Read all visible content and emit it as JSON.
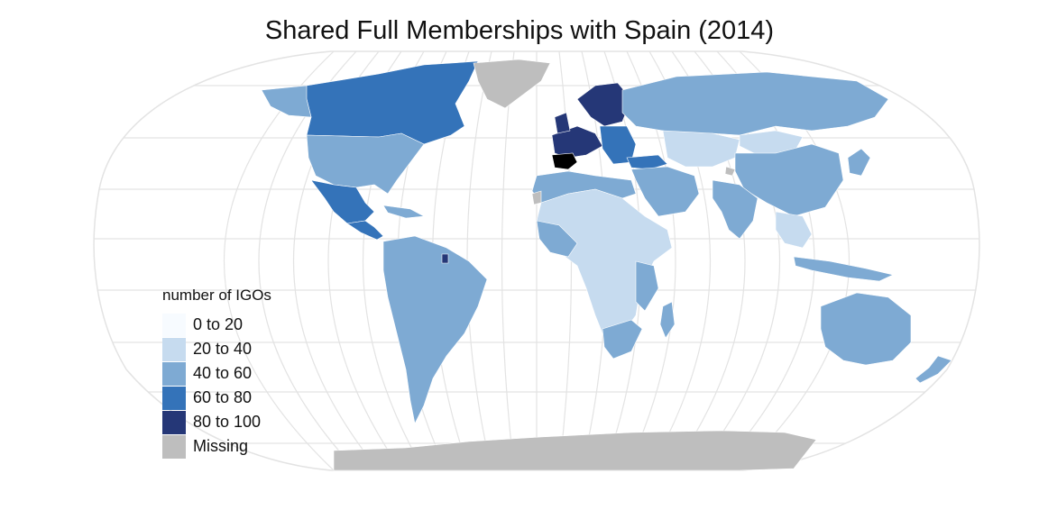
{
  "title": "Shared Full Memberships with Spain (2014)",
  "legend": {
    "title": "number of IGOs",
    "items": [
      {
        "label": "0 to 20",
        "color": "#f7fbff"
      },
      {
        "label": "20 to 40",
        "color": "#c6dbef"
      },
      {
        "label": "40 to 60",
        "color": "#7eaad3"
      },
      {
        "label": "60 to 80",
        "color": "#3473b9"
      },
      {
        "label": "80 to 100",
        "color": "#253777"
      },
      {
        "label": "Missing",
        "color": "#bebebe"
      }
    ]
  },
  "colors": {
    "focus_country": "#000000",
    "graticule": "#e3e3e3",
    "country_border": "#ffffff"
  },
  "regions": [
    {
      "name": "Canada",
      "bin": "60 to 80"
    },
    {
      "name": "Alaska",
      "bin": "40 to 60"
    },
    {
      "name": "United States",
      "bin": "40 to 60"
    },
    {
      "name": "Mexico",
      "bin": "60 to 80"
    },
    {
      "name": "Central America",
      "bin": "60 to 80"
    },
    {
      "name": "Caribbean",
      "bin": "40 to 60"
    },
    {
      "name": "Greenland",
      "bin": "Missing"
    },
    {
      "name": "South America",
      "bin": "40 to 60"
    },
    {
      "name": "French Guiana",
      "bin": "80 to 100"
    },
    {
      "name": "Western Europe",
      "bin": "80 to 100"
    },
    {
      "name": "Scandinavia",
      "bin": "80 to 100"
    },
    {
      "name": "United Kingdom",
      "bin": "80 to 100"
    },
    {
      "name": "Spain",
      "bin": "focus"
    },
    {
      "name": "Eastern Europe",
      "bin": "60 to 80"
    },
    {
      "name": "Turkey",
      "bin": "60 to 80"
    },
    {
      "name": "Russia",
      "bin": "40 to 60"
    },
    {
      "name": "Central Asia",
      "bin": "20 to 40"
    },
    {
      "name": "Mongolia",
      "bin": "20 to 40"
    },
    {
      "name": "China",
      "bin": "40 to 60"
    },
    {
      "name": "Middle East",
      "bin": "40 to 60"
    },
    {
      "name": "India",
      "bin": "40 to 60"
    },
    {
      "name": "Southeast Asia",
      "bin": "20 to 40"
    },
    {
      "name": "Japan",
      "bin": "40 to 60"
    },
    {
      "name": "Indonesia",
      "bin": "40 to 60"
    },
    {
      "name": "North Africa",
      "bin": "40 to 60"
    },
    {
      "name": "Sub-Saharan Africa",
      "bin": "20 to 40"
    },
    {
      "name": "West Africa",
      "bin": "40 to 60"
    },
    {
      "name": "East Africa",
      "bin": "40 to 60"
    },
    {
      "name": "Southern Africa",
      "bin": "40 to 60"
    },
    {
      "name": "Madagascar",
      "bin": "40 to 60"
    },
    {
      "name": "Australia",
      "bin": "40 to 60"
    },
    {
      "name": "New Zealand",
      "bin": "40 to 60"
    },
    {
      "name": "Antarctica",
      "bin": "Missing"
    },
    {
      "name": "Western Sahara",
      "bin": "Missing"
    },
    {
      "name": "Kashmir",
      "bin": "Missing"
    }
  ]
}
